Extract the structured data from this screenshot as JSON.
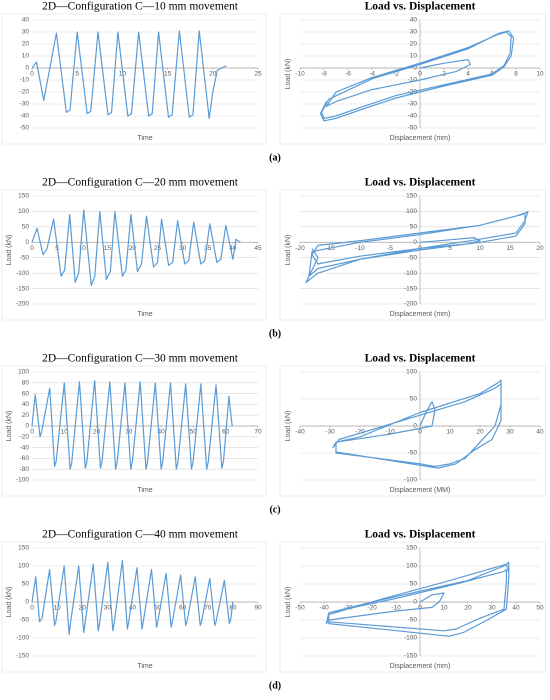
{
  "panel_labels": [
    "(a)",
    "(b)",
    "(c)",
    "(d)"
  ],
  "chart_data": [
    {
      "type": "line",
      "title": "2D—Configuration C—10 mm movement",
      "x_label": "Time",
      "xlim": [
        0,
        25
      ],
      "xticks": [
        0,
        5,
        10,
        15,
        20,
        25
      ],
      "ylim": [
        -50,
        40
      ],
      "yticks": [
        -50,
        -40,
        -30,
        -20,
        -10,
        0,
        10,
        20,
        30,
        40
      ],
      "grid": true,
      "series": [
        {
          "color": "#5b9bd5",
          "x": [
            0,
            0.5,
            1.3,
            2.7,
            3.8,
            4.2,
            5.0,
            6.1,
            6.5,
            7.3,
            8.4,
            8.8,
            9.5,
            10.6,
            11.0,
            11.8,
            12.9,
            13.3,
            14.0,
            15.1,
            15.5,
            16.3,
            17.4,
            17.8,
            18.5,
            19.6,
            20.0,
            20.5,
            21.0,
            21.5
          ],
          "values": [
            0,
            5,
            -27,
            29,
            -37,
            -35,
            30,
            -38,
            -36,
            30,
            -39,
            -37,
            30,
            -40,
            -38,
            30,
            -40,
            -38,
            30,
            -41,
            -39,
            31,
            -41,
            -39,
            31,
            -42,
            -20,
            -2,
            0,
            2
          ]
        }
      ]
    },
    {
      "type": "line",
      "title": "Load vs. Displacement",
      "x_label": "Displacement (mm)",
      "y_label": "Load (kN)",
      "xlim": [
        -10,
        10
      ],
      "xticks": [
        -10,
        -8,
        -6,
        -4,
        -2,
        0,
        2,
        4,
        6,
        8,
        10
      ],
      "ylim": [
        -50,
        40
      ],
      "yticks": [
        -50,
        -40,
        -30,
        -20,
        -10,
        0,
        10,
        20,
        30,
        40
      ],
      "grid": true,
      "series": [
        {
          "color": "#5b9bd5",
          "x": [
            0,
            2,
            4,
            4.2,
            3,
            0,
            -4,
            -7,
            -7.8,
            -7,
            -4,
            0,
            4,
            6.5,
            7.2,
            7.6,
            7.5,
            7,
            6,
            2,
            -2,
            -5,
            -7,
            -8,
            -8.2,
            -7.6,
            -4,
            0,
            4,
            6.6,
            7.4,
            7.8,
            7.6,
            7,
            6,
            2,
            -2,
            -5,
            -7,
            -8,
            -8.3,
            -7.8
          ],
          "values": [
            0,
            4,
            7,
            3,
            -3,
            -10,
            -18,
            -28,
            -32,
            -20,
            -8,
            4,
            17,
            28,
            30,
            26,
            12,
            2,
            -5,
            -14,
            -23,
            -33,
            -40,
            -42,
            -37,
            -26,
            -9,
            3,
            16,
            29,
            31,
            25,
            10,
            1,
            -6,
            -15,
            -25,
            -35,
            -42,
            -44,
            -38,
            -28
          ]
        }
      ]
    },
    {
      "type": "line",
      "title": "2D—Configuration C—20 mm movement",
      "x_label": "Time",
      "y_label": "Load (kN)",
      "xlim": [
        0,
        45
      ],
      "xticks": [
        0,
        5,
        10,
        15,
        20,
        25,
        30,
        35,
        40,
        45
      ],
      "ylim": [
        -200,
        150
      ],
      "yticks": [
        -200,
        -150,
        -100,
        -50,
        0,
        50,
        100,
        150
      ],
      "grid": true,
      "series": [
        {
          "color": "#5b9bd5",
          "x": [
            0,
            1,
            2.2,
            3,
            4.3,
            5.8,
            6.5,
            7.5,
            8.6,
            9.3,
            10.3,
            11.8,
            12.5,
            13.5,
            14.8,
            15.6,
            16.5,
            18.0,
            18.7,
            19.7,
            21.0,
            21.8,
            22.8,
            24.2,
            25,
            25.8,
            27.2,
            28,
            29,
            30.4,
            31.2,
            32.2,
            33.6,
            34.4,
            35.4,
            36.8,
            37.6,
            38.6,
            40,
            40.6,
            41.5
          ],
          "values": [
            0,
            45,
            -40,
            -20,
            75,
            -110,
            -90,
            90,
            -130,
            -100,
            105,
            -140,
            -110,
            100,
            -120,
            -95,
            100,
            -110,
            -90,
            90,
            -95,
            -70,
            85,
            -80,
            -65,
            75,
            -75,
            -65,
            70,
            -70,
            -60,
            65,
            -70,
            -60,
            60,
            -65,
            -55,
            55,
            -55,
            10,
            0
          ]
        }
      ]
    },
    {
      "type": "line",
      "title": "Load vs. Displacement",
      "x_label": "Displacement (mm)",
      "y_label": "Load (kN)",
      "xlim": [
        -20,
        20
      ],
      "xticks": [
        -20,
        -15,
        -10,
        -5,
        0,
        5,
        10,
        15,
        20
      ],
      "ylim": [
        -200,
        150
      ],
      "yticks": [
        -200,
        -150,
        -100,
        -50,
        0,
        50,
        100,
        150
      ],
      "grid": true,
      "series": [
        {
          "color": "#5b9bd5",
          "x": [
            0,
            5,
            9,
            10,
            8,
            0,
            -10,
            -17,
            -18,
            -17,
            -10,
            0,
            10,
            16,
            17.5,
            17.5,
            16,
            10,
            0,
            -10,
            -17,
            -18.5,
            -18,
            -10,
            0,
            10,
            17,
            18,
            17.5,
            16,
            10,
            0,
            -10,
            -17,
            -19,
            -17,
            -18
          ],
          "values": [
            0,
            8,
            15,
            5,
            -5,
            -20,
            -45,
            -70,
            -40,
            -10,
            5,
            30,
            55,
            85,
            95,
            60,
            20,
            0,
            -25,
            -55,
            -85,
            -110,
            -30,
            0,
            25,
            55,
            90,
            100,
            70,
            30,
            10,
            -20,
            -55,
            -100,
            -130,
            -50,
            -20
          ]
        }
      ]
    },
    {
      "type": "line",
      "title": "2D—Configuration C—30 mm movement",
      "x_label": "Time",
      "y_label": "Load (kN)",
      "xlim": [
        0,
        70
      ],
      "xticks": [
        0,
        10,
        20,
        30,
        40,
        50,
        60,
        70
      ],
      "ylim": [
        -100,
        100
      ],
      "yticks": [
        -100,
        -80,
        -60,
        -40,
        -20,
        0,
        20,
        40,
        60,
        80,
        100
      ],
      "grid": true,
      "series": [
        {
          "color": "#5b9bd5",
          "x": [
            0,
            1,
            2.5,
            3,
            5.5,
            7,
            7.5,
            10,
            11.8,
            12.3,
            14.7,
            16.5,
            17,
            19.4,
            21.2,
            21.7,
            24.1,
            25.9,
            26.4,
            28.8,
            30.6,
            31.1,
            33.5,
            35.3,
            35.8,
            38.2,
            40,
            40.5,
            42.9,
            44.7,
            45.2,
            47.6,
            49.4,
            49.9,
            52.3,
            54.1,
            54.6,
            57,
            58.8,
            59.3,
            61,
            62
          ],
          "values": [
            0,
            58,
            -20,
            -10,
            70,
            -75,
            -65,
            80,
            -80,
            -68,
            82,
            -78,
            -66,
            84,
            -78,
            -65,
            82,
            -80,
            -66,
            80,
            -80,
            -66,
            82,
            -80,
            -66,
            80,
            -80,
            -66,
            80,
            -80,
            -66,
            78,
            -80,
            -66,
            78,
            -80,
            -66,
            76,
            -78,
            -66,
            55,
            0
          ]
        }
      ]
    },
    {
      "type": "line",
      "title": "Load vs. Displacement",
      "x_label": "Displacement (MM)",
      "y_label": "Load (kN)",
      "xlim": [
        -40,
        40
      ],
      "xticks": [
        -40,
        -30,
        -20,
        -10,
        0,
        10,
        20,
        30,
        40
      ],
      "ylim": [
        -100,
        100
      ],
      "yticks": [
        -100,
        -50,
        0,
        50,
        100
      ],
      "grid": true,
      "series": [
        {
          "color": "#5b9bd5",
          "x": [
            0,
            2,
            4,
            5,
            4,
            -10,
            -28,
            -29,
            -27,
            0,
            15,
            25,
            27,
            27,
            25,
            20,
            15,
            10,
            5,
            0,
            -28,
            -28,
            -20,
            0,
            20,
            26,
            27,
            27,
            24,
            18,
            12,
            6,
            -28
          ],
          "values": [
            0,
            25,
            45,
            30,
            0,
            -15,
            -30,
            -40,
            -25,
            20,
            45,
            70,
            78,
            40,
            0,
            -30,
            -60,
            -70,
            -75,
            -70,
            -50,
            -30,
            -20,
            25,
            60,
            80,
            85,
            10,
            -25,
            -45,
            -70,
            -78,
            -48
          ]
        }
      ]
    },
    {
      "type": "line",
      "title": "2D—Configuration C—40 mm movement",
      "x_label": "Time",
      "y_label": "Load (kN)",
      "xlim": [
        0,
        90
      ],
      "xticks": [
        0,
        10,
        20,
        30,
        40,
        50,
        60,
        70,
        80,
        90
      ],
      "ylim": [
        -150,
        150
      ],
      "yticks": [
        -150,
        -100,
        -50,
        0,
        50,
        100,
        150
      ],
      "grid": true,
      "series": [
        {
          "color": "#5b9bd5",
          "x": [
            0,
            1.5,
            3,
            4,
            7,
            9,
            9.5,
            12.8,
            14.8,
            15.3,
            18.6,
            20.6,
            21.1,
            24.4,
            26.4,
            26.9,
            30.2,
            32.2,
            32.7,
            36,
            38,
            38.5,
            41.8,
            43.8,
            44.3,
            47.6,
            49.6,
            50.1,
            53.4,
            55.4,
            55.9,
            59.2,
            61.2,
            61.7,
            65,
            67,
            67.5,
            70.8,
            72.8,
            73.3,
            76.6,
            78.6,
            79.1,
            80
          ],
          "values": [
            0,
            70,
            -55,
            -45,
            90,
            -65,
            -55,
            100,
            -90,
            -60,
            100,
            -85,
            -60,
            105,
            -80,
            -60,
            110,
            -80,
            -60,
            115,
            -75,
            -55,
            95,
            -75,
            -55,
            90,
            -70,
            -55,
            80,
            -70,
            -55,
            75,
            -65,
            -55,
            70,
            -65,
            -55,
            65,
            -65,
            -55,
            60,
            -60,
            -50,
            0
          ]
        }
      ]
    },
    {
      "type": "line",
      "title": "Load vs. Displacement",
      "x_label": "Displacement (mm)",
      "y_label": "Load (kN)",
      "xlim": [
        -50,
        50
      ],
      "xticks": [
        -50,
        -40,
        -30,
        -20,
        -10,
        0,
        10,
        20,
        30,
        40,
        50
      ],
      "ylim": [
        -150,
        150
      ],
      "yticks": [
        -150,
        -100,
        -50,
        0,
        50,
        100,
        150
      ],
      "grid": true,
      "series": [
        {
          "color": "#5b9bd5",
          "x": [
            0,
            5,
            10,
            8,
            5,
            -10,
            -38,
            -39,
            -38,
            -10,
            15,
            35,
            36,
            36,
            35,
            25,
            15,
            10,
            -38,
            -38,
            -20,
            0,
            20,
            35,
            37,
            37,
            36,
            28,
            18,
            12,
            -38,
            -38,
            -15,
            10,
            36,
            37
          ],
          "values": [
            0,
            20,
            25,
            0,
            -15,
            -25,
            -50,
            -60,
            -30,
            10,
            50,
            85,
            90,
            60,
            -20,
            -45,
            -75,
            -80,
            -55,
            -30,
            0,
            30,
            60,
            100,
            110,
            70,
            -20,
            -50,
            -85,
            -95,
            -60,
            -35,
            10,
            55,
            105,
            80
          ]
        }
      ]
    }
  ]
}
